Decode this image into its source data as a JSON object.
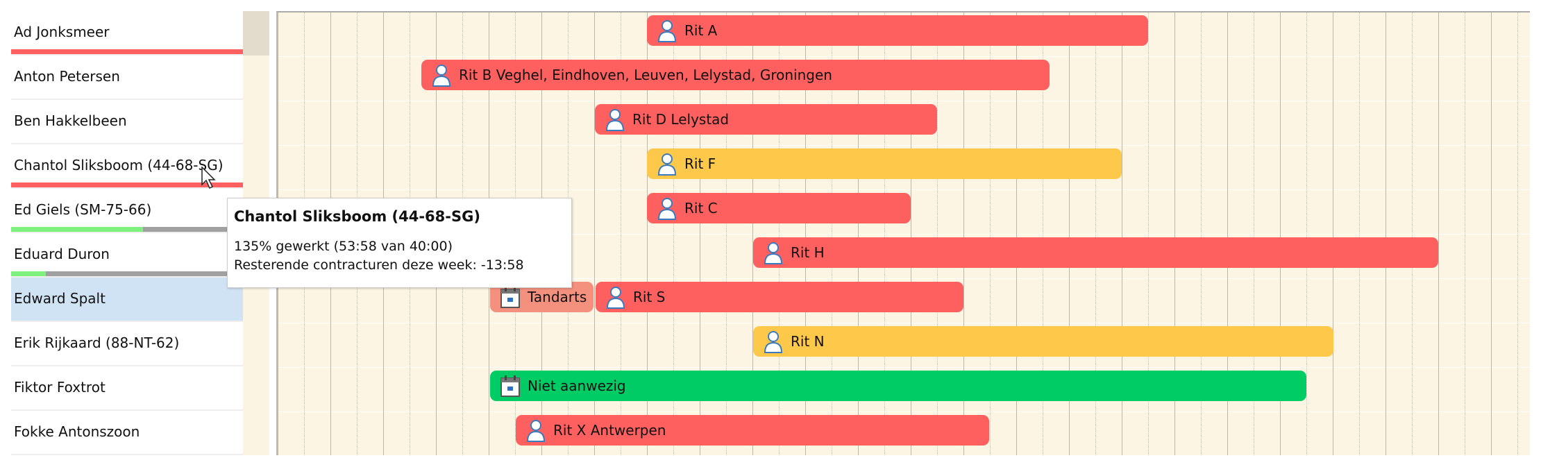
{
  "resources": [
    {
      "name": "Ad Jonksmeer",
      "progress": 1.0,
      "progress_color": "#fe5f5f"
    },
    {
      "name": "Anton Petersen"
    },
    {
      "name": "Ben Hakkelbeen"
    },
    {
      "name": "Chantol Sliksboom (44-68-SG)",
      "progress": 1.0,
      "progress_color": "#fe5f5f"
    },
    {
      "name": "Ed Giels (SM-75-66)",
      "progress": 0.57,
      "progress_color": "#7df07d"
    },
    {
      "name": "Eduard Duron",
      "progress": 0.15,
      "progress_color": "#7df07d"
    },
    {
      "name": "Edward Spalt",
      "selected": true
    },
    {
      "name": "Erik Rijkaard (88-NT-62)"
    },
    {
      "name": "Fiktor Foxtrot"
    },
    {
      "name": "Fokke Antonszoon"
    }
  ],
  "bars": [
    {
      "label": "Rit A",
      "icon": "person-icon",
      "color": "#fe5f5f"
    },
    {
      "label": "Rit B Veghel, Eindhoven, Leuven, Lelystad, Groningen",
      "icon": "person-icon",
      "color": "#fe5f5f"
    },
    {
      "label": "Rit D Lelystad",
      "icon": "person-icon",
      "color": "#fe5f5f"
    },
    {
      "label": "Rit F",
      "icon": "person-icon",
      "color": "#fec84b"
    },
    {
      "label": "Rit C",
      "icon": "person-icon",
      "color": "#fe5f5f"
    },
    {
      "label": "Rit H",
      "icon": "person-icon",
      "color": "#fe5f5f"
    },
    {
      "label": "Tandarts",
      "icon": "calendar-icon",
      "color": "#f4917e"
    },
    {
      "label": "Rit S",
      "icon": "person-icon",
      "color": "#fe5f5f"
    },
    {
      "label": "Rit N",
      "icon": "person-icon",
      "color": "#fec84b"
    },
    {
      "label": "Niet aanwezig",
      "icon": "calendar-icon",
      "color": "#00cc66"
    },
    {
      "label": "Rit X Antwerpen",
      "icon": "person-icon",
      "color": "#fe5f5f"
    }
  ],
  "tooltip": {
    "title": "Chantol Sliksboom (44-68-SG)",
    "line1": "135% gewerkt (53:58 van 40:00)",
    "line2": "Resterende contracturen deze week: -13:58"
  }
}
